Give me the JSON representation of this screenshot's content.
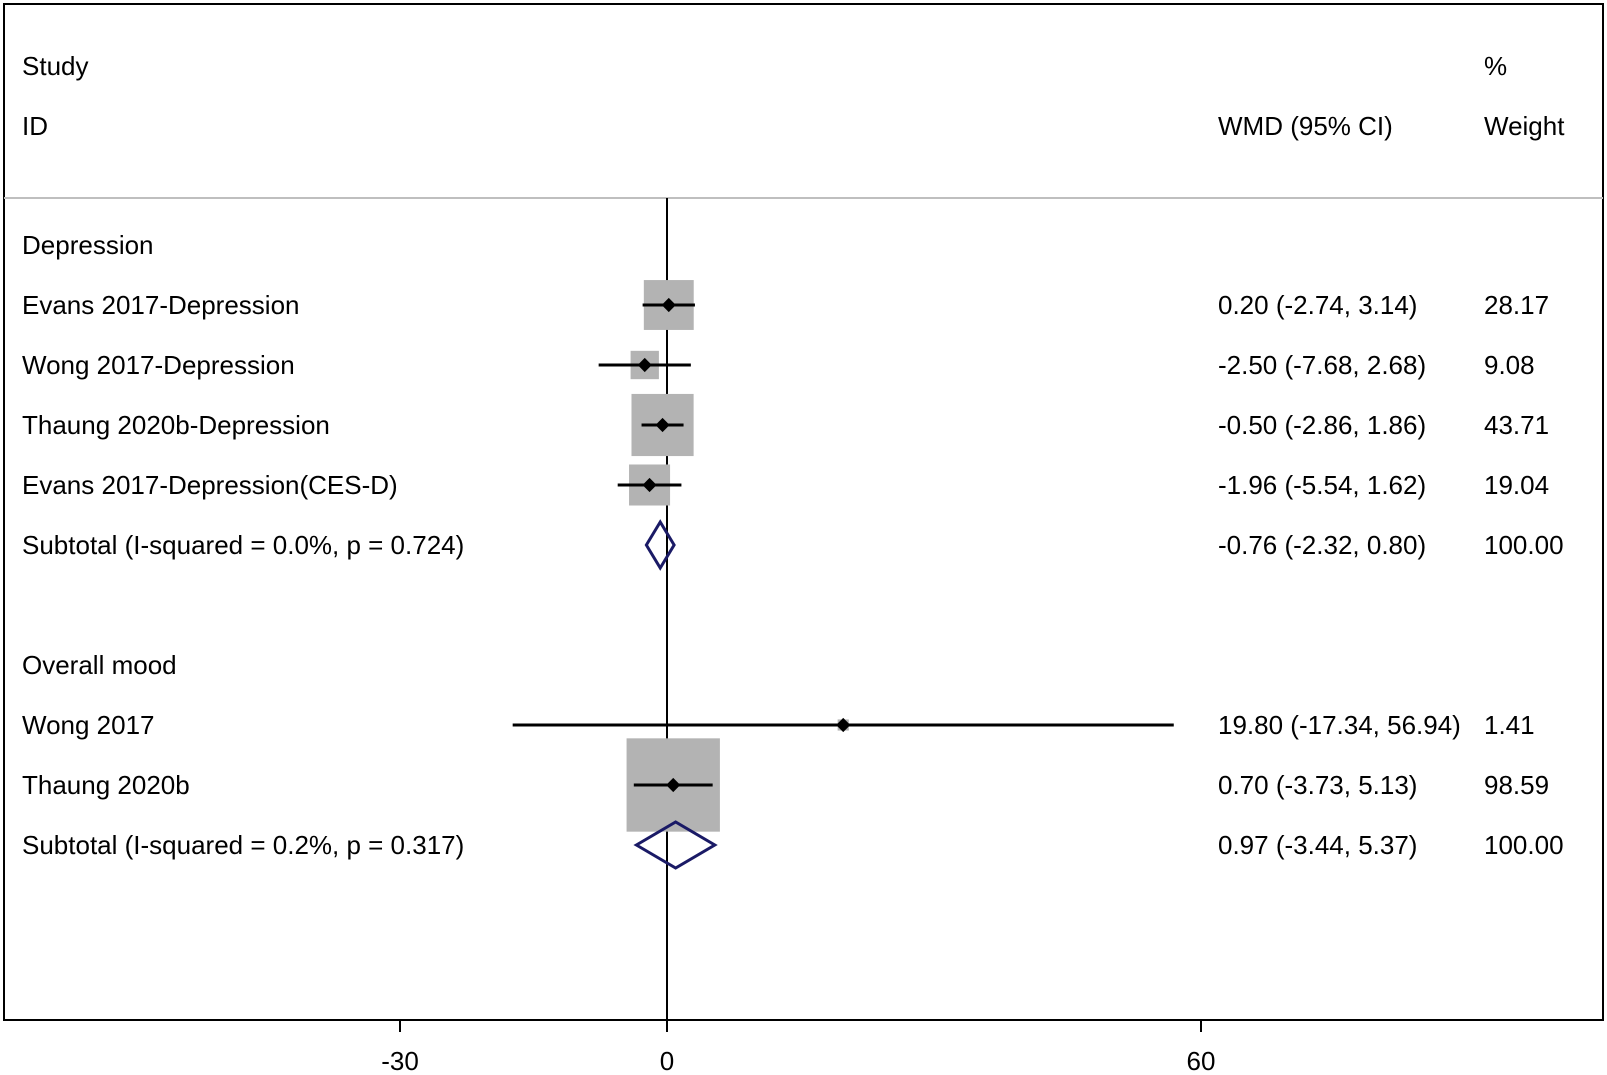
{
  "chart_data": {
    "type": "forest",
    "header": {
      "study_line1": "Study",
      "study_line2": "ID",
      "effect_label": "WMD (95% CI)",
      "weight_line1": "%",
      "weight_line2": "Weight"
    },
    "x_axis": {
      "ticks": [
        {
          "value": -30,
          "label": "-30"
        },
        {
          "value": 0,
          "label": "0"
        },
        {
          "value": 60,
          "label": "60"
        }
      ],
      "null_line": 0
    },
    "groups": [
      {
        "name": "Depression",
        "studies": [
          {
            "label": "Evans 2017-Depression",
            "est": 0.2,
            "lo": -2.74,
            "hi": 3.14,
            "ci_text": "0.20 (-2.74, 3.14)",
            "weight": "28.17"
          },
          {
            "label": "Wong 2017-Depression",
            "est": -2.5,
            "lo": -7.68,
            "hi": 2.68,
            "ci_text": "-2.50 (-7.68, 2.68)",
            "weight": "9.08"
          },
          {
            "label": "Thaung 2020b-Depression",
            "est": -0.5,
            "lo": -2.86,
            "hi": 1.86,
            "ci_text": "-0.50 (-2.86, 1.86)",
            "weight": "43.71"
          },
          {
            "label": "Evans 2017-Depression(CES-D)",
            "est": -1.96,
            "lo": -5.54,
            "hi": 1.62,
            "ci_text": "-1.96 (-5.54, 1.62)",
            "weight": "19.04"
          }
        ],
        "subtotal": {
          "label": "Subtotal  (I-squared = 0.0%, p = 0.724)",
          "est": -0.76,
          "lo": -2.32,
          "hi": 0.8,
          "ci_text": "-0.76 (-2.32, 0.80)",
          "weight": "100.00"
        }
      },
      {
        "name": "Overall mood",
        "studies": [
          {
            "label": "Wong 2017",
            "est": 19.8,
            "lo": -17.34,
            "hi": 56.94,
            "ci_text": "19.80 (-17.34, 56.94)",
            "weight": "1.41"
          },
          {
            "label": "Thaung 2020b",
            "est": 0.7,
            "lo": -3.73,
            "hi": 5.13,
            "ci_text": "0.70 (-3.73, 5.13)",
            "weight": "98.59"
          }
        ],
        "subtotal": {
          "label": "Subtotal  (I-squared = 0.2%, p = 0.317)",
          "est": 0.97,
          "lo": -3.44,
          "hi": 5.37,
          "ci_text": "0.97 (-3.44, 5.37)",
          "weight": "100.00"
        }
      }
    ],
    "colors": {
      "box": "#b3b3b3",
      "diamond": "#1a1a66",
      "line": "#000000",
      "separator": "#bfbfbf"
    }
  }
}
